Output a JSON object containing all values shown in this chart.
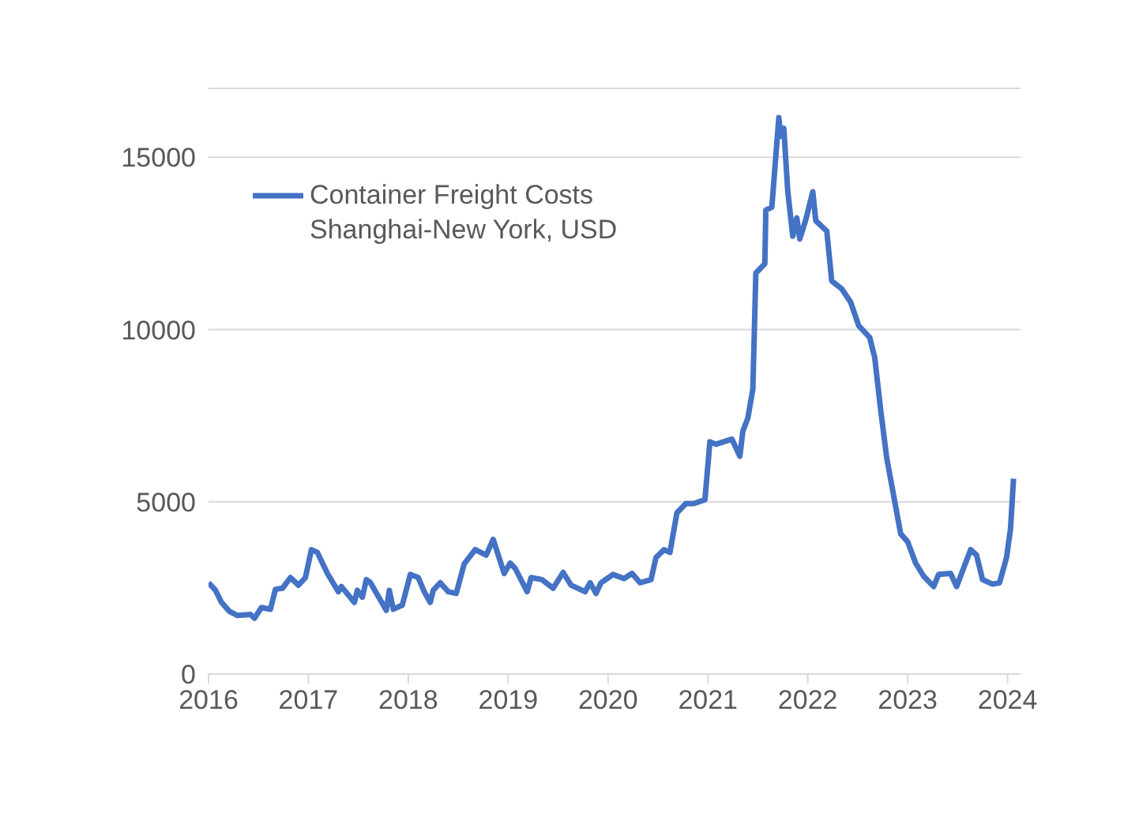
{
  "chart_data": {
    "type": "line",
    "xlim": [
      2016,
      2024.13
    ],
    "xticks": [
      2016,
      2017,
      2018,
      2019,
      2020,
      2021,
      2022,
      2023,
      2024
    ],
    "ylim": [
      0,
      17000
    ],
    "yticks": [
      0,
      5000,
      10000,
      15000
    ],
    "grid": "y",
    "legend": "top left",
    "series": [
      {
        "name": "Container Freight Costs Shanghai-New York, USD",
        "color": "#4472c4",
        "x": [
          2016.0,
          2016.07,
          2016.13,
          2016.21,
          2016.29,
          2016.42,
          2016.46,
          2016.53,
          2016.62,
          2016.67,
          2016.74,
          2016.82,
          2016.9,
          2016.97,
          2017.03,
          2017.09,
          2017.19,
          2017.3,
          2017.33,
          2017.46,
          2017.49,
          2017.54,
          2017.58,
          2017.62,
          2017.78,
          2017.81,
          2017.85,
          2017.94,
          2018.02,
          2018.1,
          2018.16,
          2018.22,
          2018.25,
          2018.32,
          2018.4,
          2018.48,
          2018.56,
          2018.67,
          2018.78,
          2018.85,
          2018.96,
          2019.02,
          2019.07,
          2019.19,
          2019.23,
          2019.34,
          2019.45,
          2019.55,
          2019.63,
          2019.77,
          2019.82,
          2019.88,
          2019.93,
          2020.05,
          2020.16,
          2020.24,
          2020.32,
          2020.43,
          2020.48,
          2020.56,
          2020.62,
          2020.69,
          2020.78,
          2020.86,
          2020.97,
          2021.02,
          2021.08,
          2021.24,
          2021.32,
          2021.35,
          2021.4,
          2021.45,
          2021.48,
          2021.57,
          2021.58,
          2021.64,
          2021.71,
          2021.73,
          2021.76,
          2021.8,
          2021.85,
          2021.89,
          2021.92,
          2021.98,
          2022.05,
          2022.08,
          2022.19,
          2022.24,
          2022.34,
          2022.43,
          2022.51,
          2022.62,
          2022.67,
          2022.73,
          2022.79,
          2022.93,
          2023.0,
          2023.08,
          2023.16,
          2023.26,
          2023.31,
          2023.43,
          2023.49,
          2023.63,
          2023.69,
          2023.75,
          2023.85,
          2023.92,
          2023.99,
          2024.03,
          2024.06
        ],
        "values": [
          2650,
          2430,
          2080,
          1820,
          1700,
          1730,
          1620,
          1930,
          1880,
          2460,
          2490,
          2800,
          2580,
          2800,
          3610,
          3530,
          2920,
          2390,
          2540,
          2080,
          2430,
          2230,
          2740,
          2660,
          1850,
          2430,
          1880,
          2000,
          2890,
          2800,
          2390,
          2080,
          2430,
          2650,
          2390,
          2340,
          3200,
          3610,
          3450,
          3910,
          2920,
          3220,
          3070,
          2390,
          2800,
          2740,
          2490,
          2950,
          2580,
          2390,
          2650,
          2340,
          2650,
          2890,
          2770,
          2920,
          2650,
          2740,
          3380,
          3610,
          3530,
          4680,
          4950,
          4950,
          5060,
          6740,
          6670,
          6820,
          6320,
          7050,
          7430,
          8270,
          11640,
          11910,
          13470,
          13550,
          16150,
          15610,
          15840,
          14000,
          12710,
          13240,
          12630,
          13190,
          14000,
          13160,
          12860,
          11410,
          11180,
          10790,
          10110,
          9770,
          9190,
          7660,
          6280,
          4070,
          3840,
          3220,
          2840,
          2540,
          2890,
          2920,
          2540,
          3610,
          3450,
          2740,
          2610,
          2650,
          3380,
          4220,
          5670
        ]
      }
    ]
  }
}
